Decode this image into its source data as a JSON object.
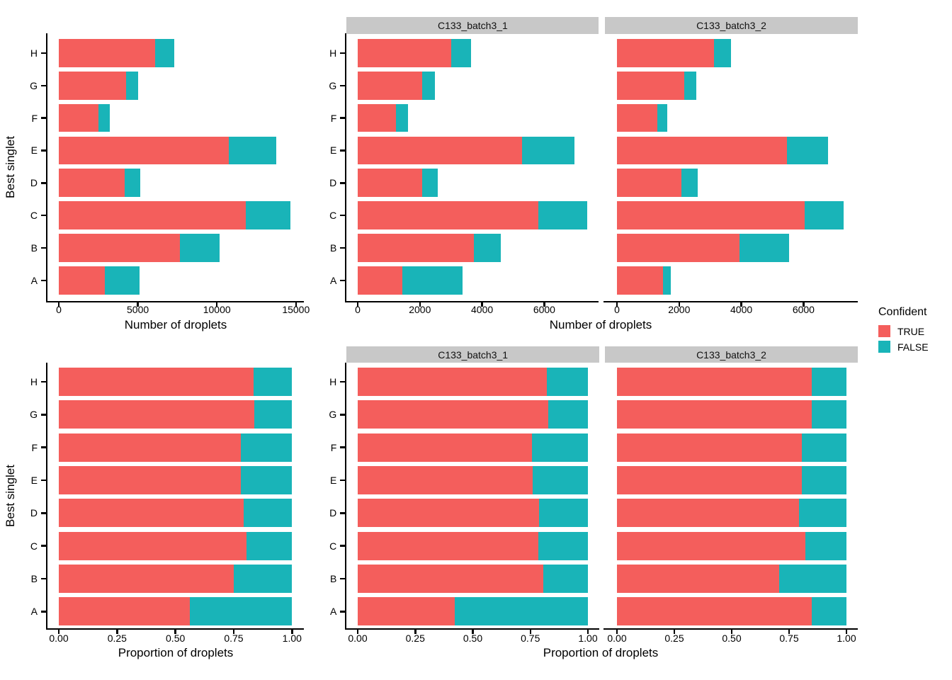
{
  "legend": {
    "title": "Confident",
    "items": [
      {
        "label": "TRUE",
        "key": "true"
      },
      {
        "label": "FALSE",
        "key": "false"
      }
    ],
    "position": "right"
  },
  "colors": {
    "true": "#f45e5c",
    "false": "#19b4b8",
    "strip_bg": "#c8c8c8",
    "axis": "#000000",
    "text": "#000000"
  },
  "chart_data": [
    {
      "type": "bar",
      "orientation": "horizontal",
      "stacked": true,
      "facet": null,
      "categories": [
        "H",
        "G",
        "F",
        "E",
        "D",
        "C",
        "B",
        "A"
      ],
      "series": [
        {
          "name": "TRUE",
          "values": [
            6110,
            4240,
            2530,
            10750,
            4150,
            11840,
            7680,
            2900
          ]
        },
        {
          "name": "FALSE",
          "values": [
            1200,
            800,
            700,
            3000,
            1010,
            2830,
            2470,
            2210
          ]
        }
      ],
      "xlabel": "Number of droplets",
      "ylabel": "Best singlet",
      "xticks": [
        {
          "value": 0,
          "label": "0"
        },
        {
          "value": 5000,
          "label": "5000"
        },
        {
          "value": 10000,
          "label": "10000"
        },
        {
          "value": 15000,
          "label": "15000"
        }
      ],
      "xlim": [
        0,
        15500
      ],
      "grid": false
    },
    {
      "type": "bar",
      "orientation": "horizontal",
      "stacked": true,
      "facet": "C133_batch3_1",
      "categories": [
        "H",
        "G",
        "F",
        "E",
        "D",
        "C",
        "B",
        "A"
      ],
      "series": [
        {
          "name": "TRUE",
          "values": [
            3000,
            2070,
            1230,
            5290,
            2070,
            5810,
            3740,
            1430
          ]
        },
        {
          "name": "FALSE",
          "values": [
            650,
            410,
            380,
            1680,
            500,
            1570,
            870,
            1950
          ]
        }
      ],
      "xlabel": "Number of droplets",
      "ylabel": "Best singlet",
      "xticks": [
        {
          "value": 0,
          "label": "0"
        },
        {
          "value": 2000,
          "label": "2000"
        },
        {
          "value": 4000,
          "label": "4000"
        },
        {
          "value": 6000,
          "label": "6000"
        }
      ],
      "xlim": [
        0,
        7750
      ],
      "grid": false
    },
    {
      "type": "bar",
      "orientation": "horizontal",
      "stacked": true,
      "facet": "C133_batch3_2",
      "categories": [
        "H",
        "G",
        "F",
        "E",
        "D",
        "C",
        "B",
        "A"
      ],
      "series": [
        {
          "name": "TRUE",
          "values": [
            3110,
            2170,
            1300,
            5460,
            2080,
            6030,
            3940,
            1470
          ]
        },
        {
          "name": "FALSE",
          "values": [
            550,
            390,
            320,
            1320,
            510,
            1260,
            1600,
            260
          ]
        }
      ],
      "xlabel": "Number of droplets",
      "ylabel": "Best singlet",
      "xticks": [
        {
          "value": 0,
          "label": "0"
        },
        {
          "value": 2000,
          "label": "2000"
        },
        {
          "value": 4000,
          "label": "4000"
        },
        {
          "value": 6000,
          "label": "6000"
        }
      ],
      "xlim": [
        0,
        7750
      ],
      "grid": false
    },
    {
      "type": "bar",
      "orientation": "horizontal",
      "stacked": true,
      "facet": null,
      "categories": [
        "H",
        "G",
        "F",
        "E",
        "D",
        "C",
        "B",
        "A"
      ],
      "series": [
        {
          "name": "TRUE",
          "values": [
            0.835,
            0.839,
            0.78,
            0.781,
            0.793,
            0.805,
            0.751,
            0.563
          ]
        },
        {
          "name": "FALSE",
          "values": [
            0.165,
            0.161,
            0.22,
            0.219,
            0.207,
            0.195,
            0.249,
            0.437
          ]
        }
      ],
      "xlabel": "Proportion of droplets",
      "ylabel": "Best singlet",
      "xticks": [
        {
          "value": 0,
          "label": "0.00"
        },
        {
          "value": 0.25,
          "label": "0.25"
        },
        {
          "value": 0.5,
          "label": "0.50"
        },
        {
          "value": 0.75,
          "label": "0.75"
        },
        {
          "value": 1,
          "label": "1.00"
        }
      ],
      "xlim": [
        0,
        1.05
      ],
      "grid": false
    },
    {
      "type": "bar",
      "orientation": "horizontal",
      "stacked": true,
      "facet": "C133_batch3_1",
      "categories": [
        "H",
        "G",
        "F",
        "E",
        "D",
        "C",
        "B",
        "A"
      ],
      "series": [
        {
          "name": "TRUE",
          "values": [
            0.821,
            0.828,
            0.757,
            0.759,
            0.788,
            0.785,
            0.806,
            0.423
          ]
        },
        {
          "name": "FALSE",
          "values": [
            0.179,
            0.172,
            0.243,
            0.241,
            0.212,
            0.215,
            0.194,
            0.577
          ]
        }
      ],
      "xlabel": "Proportion of droplets",
      "ylabel": "Best singlet",
      "xticks": [
        {
          "value": 0,
          "label": "0.00"
        },
        {
          "value": 0.25,
          "label": "0.25"
        },
        {
          "value": 0.5,
          "label": "0.50"
        },
        {
          "value": 0.75,
          "label": "0.75"
        },
        {
          "value": 1,
          "label": "1.00"
        }
      ],
      "xlim": [
        0,
        1.05
      ],
      "grid": false
    },
    {
      "type": "bar",
      "orientation": "horizontal",
      "stacked": true,
      "facet": "C133_batch3_2",
      "categories": [
        "H",
        "G",
        "F",
        "E",
        "D",
        "C",
        "B",
        "A"
      ],
      "series": [
        {
          "name": "TRUE",
          "values": [
            0.849,
            0.849,
            0.805,
            0.807,
            0.792,
            0.822,
            0.707,
            0.85
          ]
        },
        {
          "name": "FALSE",
          "values": [
            0.151,
            0.151,
            0.195,
            0.193,
            0.208,
            0.178,
            0.293,
            0.15
          ]
        }
      ],
      "xlabel": "Proportion of droplets",
      "ylabel": "Best singlet",
      "xticks": [
        {
          "value": 0,
          "label": "0.00"
        },
        {
          "value": 0.25,
          "label": "0.25"
        },
        {
          "value": 0.5,
          "label": "0.50"
        },
        {
          "value": 0.75,
          "label": "0.75"
        },
        {
          "value": 1,
          "label": "1.00"
        }
      ],
      "xlim": [
        0,
        1.05
      ],
      "grid": false
    }
  ]
}
